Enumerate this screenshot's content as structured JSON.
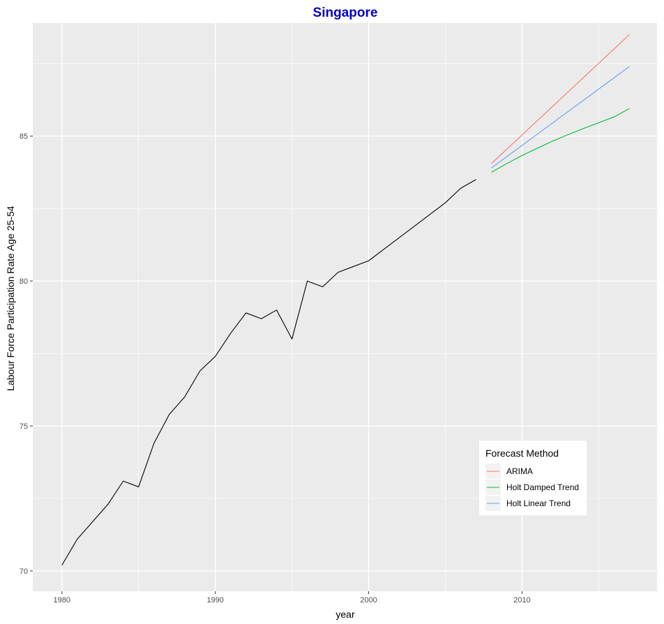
{
  "chart_data": {
    "type": "line",
    "title": "Singapore",
    "title_color": "#0000cc",
    "xlabel": "year",
    "ylabel": "Labour Force Participation Rate Age 25-54",
    "xlim": [
      1978.1,
      2018.8
    ],
    "ylim": [
      69.3,
      88.9
    ],
    "x_ticks": [
      1980,
      1990,
      2000,
      2010
    ],
    "x_tick_labels": [
      "1980",
      "1990",
      "2000",
      "2010"
    ],
    "x_minor": [
      1985,
      1995,
      2005,
      2015
    ],
    "y_ticks": [
      70,
      75,
      80,
      85
    ],
    "y_tick_labels": [
      "70",
      "75",
      "80",
      "85"
    ],
    "y_minor": [
      72.5,
      77.5,
      82.5,
      87.5
    ],
    "grid": true,
    "panel_background": "#ebebeb",
    "legend": {
      "title": "Forecast Method",
      "position": "bottom-right",
      "entries": [
        "ARIMA",
        "Holt Damped Trend",
        "Holt Linear Trend"
      ]
    },
    "series": [
      {
        "color": "#000000",
        "x": [
          1980,
          1981,
          1982,
          1983,
          1984,
          1985,
          1986,
          1987,
          1988,
          1989,
          1990,
          1991,
          1992,
          1993,
          1994,
          1995,
          1996,
          1997,
          1998,
          1999,
          2000,
          2001,
          2002,
          2003,
          2004,
          2005,
          2006,
          2007
        ],
        "y": [
          70.2,
          71.1,
          71.7,
          72.3,
          73.1,
          72.9,
          74.4,
          75.4,
          76.0,
          76.9,
          77.4,
          78.2,
          78.9,
          78.7,
          79.0,
          78.0,
          80.0,
          79.8,
          80.3,
          80.5,
          80.7,
          81.1,
          81.5,
          81.9,
          82.3,
          82.7,
          83.2,
          83.5
        ]
      },
      {
        "name": "ARIMA",
        "color": "#f8766d",
        "x": [
          2008,
          2017
        ],
        "y": [
          84.05,
          88.5
        ]
      },
      {
        "name": "Holt Damped Trend",
        "color": "#00ba38",
        "x": [
          2008,
          2009,
          2010,
          2011,
          2012,
          2013,
          2014,
          2015,
          2016,
          2017
        ],
        "y": [
          83.75,
          84.05,
          84.33,
          84.58,
          84.83,
          85.05,
          85.26,
          85.46,
          85.66,
          85.95
        ]
      },
      {
        "name": "Holt Linear Trend",
        "color": "#619cff",
        "x": [
          2008,
          2017
        ],
        "y": [
          83.9,
          87.4
        ]
      }
    ]
  }
}
